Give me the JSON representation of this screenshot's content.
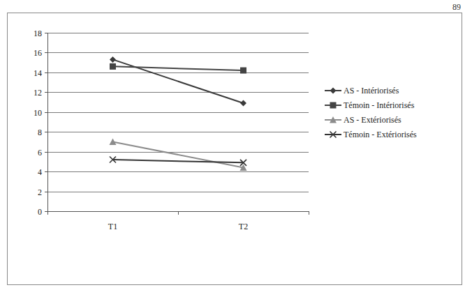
{
  "chart_data": {
    "type": "line",
    "categories": [
      "T1",
      "T2"
    ],
    "series": [
      {
        "name": "AS - Intériorisés",
        "color": "#3a3a3a",
        "marker": "diamond",
        "line_style": "solid",
        "values": [
          15.3,
          10.9
        ]
      },
      {
        "name": "Témoin - Intériorisés",
        "color": "#444444",
        "marker": "square",
        "line_style": "solid",
        "values": [
          14.6,
          14.2
        ]
      },
      {
        "name": "AS - Extériorisés",
        "color": "#8c8c8c",
        "marker": "triangle",
        "line_style": "solid",
        "values": [
          7.0,
          4.4
        ]
      },
      {
        "name": "Témoin - Extériorisés",
        "color": "#333333",
        "marker": "x",
        "line_style": "solid",
        "values": [
          5.2,
          4.9
        ]
      }
    ],
    "ylim": [
      0,
      18
    ],
    "yticks": [
      0,
      2,
      4,
      6,
      8,
      10,
      12,
      14,
      16,
      18
    ],
    "grid": true,
    "legend": "right"
  },
  "page": {
    "number": "89"
  }
}
